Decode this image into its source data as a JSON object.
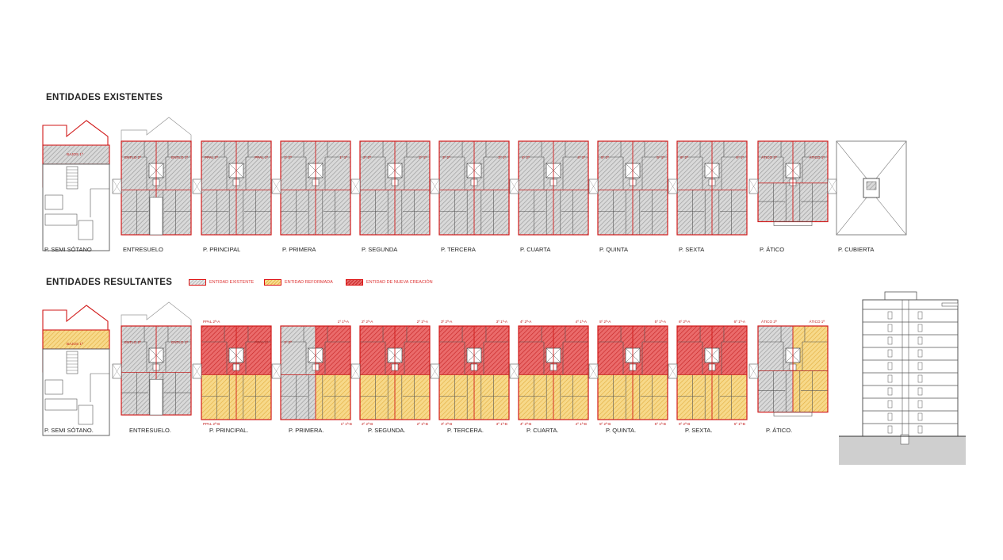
{
  "sections": {
    "existing_title": "ENTIDADES EXISTENTES",
    "resulting_title": "ENTIDADES RESULTANTES"
  },
  "legend": [
    {
      "label": "ENTIDAD EXISTENTE",
      "fill": "#c8c8c8"
    },
    {
      "label": "ENTIDAD REFORMADA",
      "fill": "#f2d07a"
    },
    {
      "label": "ENTIDAD DE NUEVA CREACIÓN",
      "fill": "#e35555"
    }
  ],
  "colors": {
    "outline": "#d11a1a",
    "existing": "#bdbdbd",
    "reformed": "#f2cf78",
    "new": "#e25555",
    "line": "#555555"
  },
  "existing_plans": [
    {
      "label": "P. SEMI SÓTANO",
      "type": "semi",
      "units": [
        "BAJOS 1ª"
      ]
    },
    {
      "label": "ENTRESUELO",
      "type": "entre",
      "units": [
        "ENTLO 2ª",
        "ENTLO 1ª"
      ]
    },
    {
      "label": "P. PRINCIPAL",
      "type": "std",
      "units": [
        "PPAL 2ª",
        "PPAL 1ª"
      ]
    },
    {
      "label": "P. PRIMERA",
      "type": "std",
      "units": [
        "1º 2ª",
        "1º 1ª"
      ]
    },
    {
      "label": "P. SEGUNDA",
      "type": "std",
      "units": [
        "2º 2ª",
        "2º 1ª"
      ]
    },
    {
      "label": "P. TERCERA",
      "type": "std",
      "units": [
        "3º 2ª",
        "3º 1ª"
      ]
    },
    {
      "label": "P. CUARTA",
      "type": "std",
      "units": [
        "4º 2ª",
        "4º 1ª"
      ]
    },
    {
      "label": "P. QUINTA",
      "type": "std",
      "units": [
        "5º 2ª",
        "5º 1ª"
      ]
    },
    {
      "label": "P. SEXTA",
      "type": "std",
      "units": [
        "6º 2ª",
        "6º 1ª"
      ]
    },
    {
      "label": "P. ÁTICO",
      "type": "atico",
      "units": [
        "ÁTICO 2ª",
        "ÁTICO 1ª"
      ]
    },
    {
      "label": "P. CUBIERTA",
      "type": "roof",
      "units": []
    }
  ],
  "resulting_plans": [
    {
      "label": "P. SEMI SÓTANO.",
      "type": "semi",
      "scheme": "semi",
      "units": [
        "BAJOS 1ª"
      ]
    },
    {
      "label": "ENTRESUELO.",
      "type": "entre",
      "scheme": "existing",
      "units": [
        "ENTLO 2ª",
        "ENTLO 1ª"
      ]
    },
    {
      "label": "P. PRINCIPAL.",
      "type": "std",
      "scheme": "ppal",
      "units": [
        "PPAL 2ª-A",
        "PPAL 1ª",
        "PPAL 2ª-B"
      ]
    },
    {
      "label": "P. PRIMERA.",
      "type": "std",
      "scheme": "primera",
      "units": [
        "1º 1ª-A",
        "1º 2ª",
        "1º 1ª-B"
      ]
    },
    {
      "label": "P. SEGUNDA.",
      "type": "std",
      "scheme": "full",
      "units": [
        "2º 2ª-A",
        "2º 1ª-A",
        "2º 2ª-B",
        "2º 1ª-B"
      ]
    },
    {
      "label": "P. TERCERA.",
      "type": "std",
      "scheme": "full",
      "units": [
        "3º 2ª-A",
        "3º 1ª-A",
        "3º 2ª-B",
        "3º 1ª-B"
      ]
    },
    {
      "label": "P. CUARTA.",
      "type": "std",
      "scheme": "full",
      "units": [
        "4º 2ª-A",
        "4º 1ª-A",
        "4º 2ª-B",
        "4º 1ª-B"
      ]
    },
    {
      "label": "P. QUINTA.",
      "type": "std",
      "scheme": "full",
      "units": [
        "5º 2ª-A",
        "5º 1ª-A",
        "5º 2ª-B",
        "5º 1ª-B"
      ]
    },
    {
      "label": "P. SEXTA.",
      "type": "std",
      "scheme": "full",
      "units": [
        "6º 2ª-A",
        "6º 1ª-A",
        "6º 2ª-B",
        "6º 1ª-B"
      ]
    },
    {
      "label": "P. ÁTICO.",
      "type": "atico",
      "scheme": "atico",
      "units": [
        "ÁTICO 2ª",
        "ÁTICO 1ª"
      ]
    }
  ]
}
